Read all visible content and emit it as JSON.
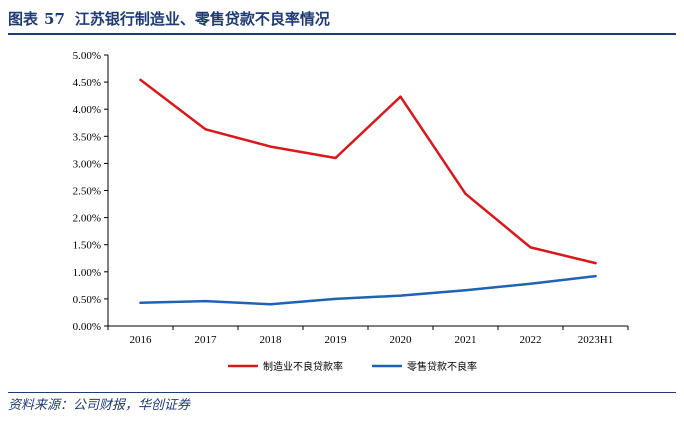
{
  "figure": {
    "label": "图表",
    "number": "57",
    "title": "江苏银行制造业、零售贷款不良率情况"
  },
  "source": "资料来源：公司财报，华创证券",
  "chart_data": {
    "type": "line",
    "x": [
      "2016",
      "2017",
      "2018",
      "2019",
      "2020",
      "2021",
      "2022",
      "2023H1"
    ],
    "ylim": [
      0,
      5
    ],
    "ytick_step": 0.5,
    "y_format": "percent_2dp",
    "grid": false,
    "legend_position": "bottom",
    "series": [
      {
        "name": "制造业不良贷款率",
        "color": "#d7191c",
        "values": [
          4.54,
          3.63,
          3.31,
          3.1,
          4.23,
          2.44,
          1.45,
          1.16
        ]
      },
      {
        "name": "零售贷款不良率",
        "color": "#1f63b4",
        "values": [
          0.43,
          0.46,
          0.4,
          0.5,
          0.56,
          0.66,
          0.78,
          0.92
        ]
      }
    ]
  }
}
